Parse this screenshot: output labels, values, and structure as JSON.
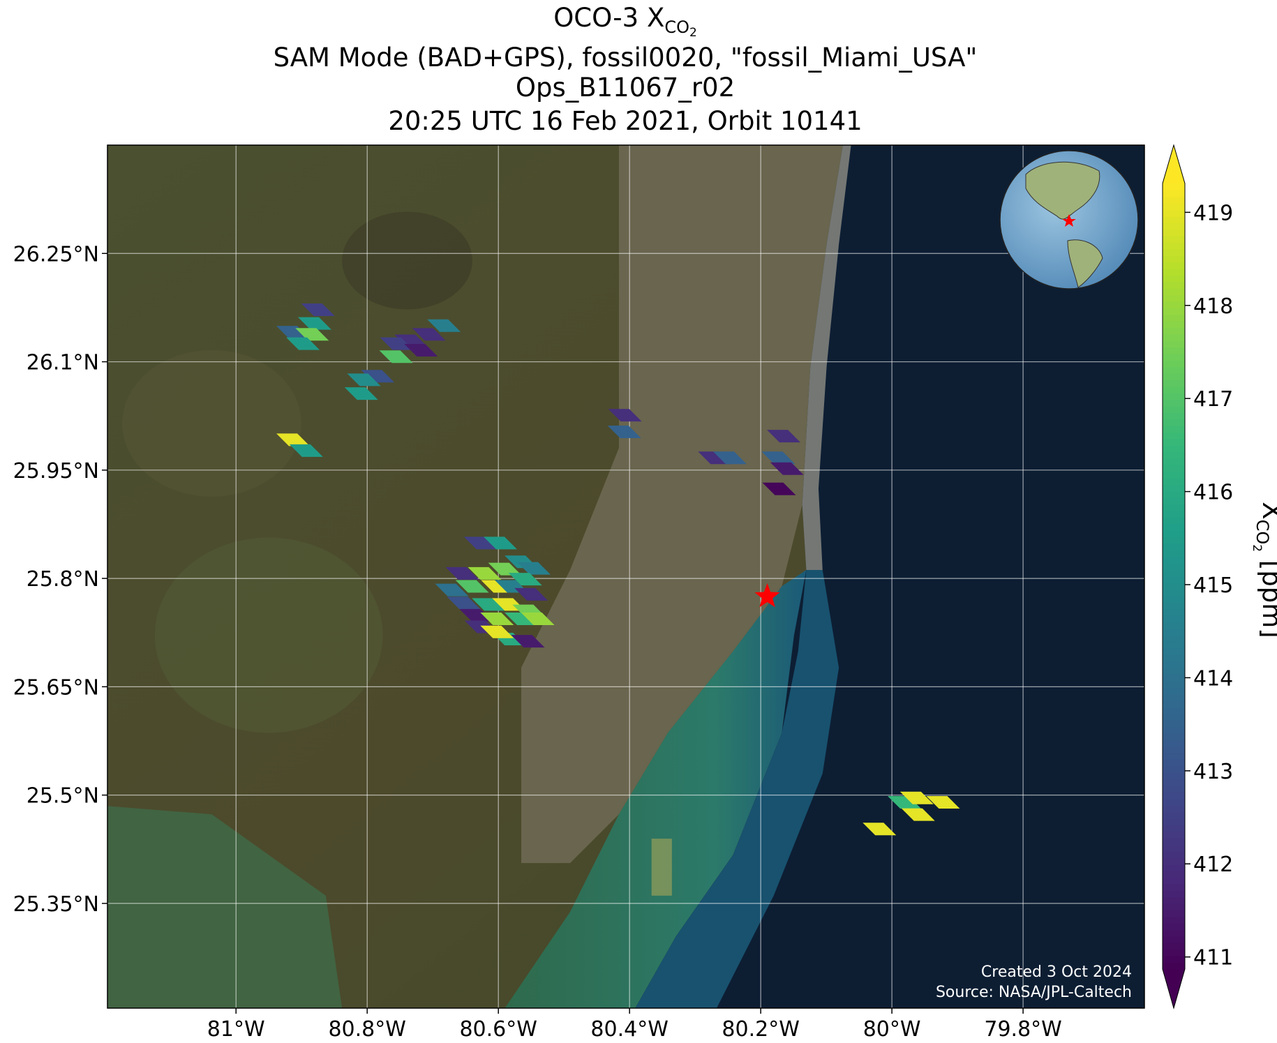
{
  "chart_data": {
    "type": "map",
    "title": {
      "base": "OCO-3 X",
      "sub": "CO",
      "subsub": "2"
    },
    "subtitle_lines": [
      "SAM Mode (BAD+GPS), fossil0020, \"fossil_Miami_USA\"",
      "Ops_B11067_r02",
      "20:25 UTC 16 Feb 2021, Orbit 10141"
    ],
    "xlim": [
      -81.196,
      -79.615
    ],
    "ylim": [
      25.205,
      26.4
    ],
    "xticks": [
      {
        "value": -81,
        "label": "81°W"
      },
      {
        "value": -80.8,
        "label": "80.8°W"
      },
      {
        "value": -80.6,
        "label": "80.6°W"
      },
      {
        "value": -80.4,
        "label": "80.4°W"
      },
      {
        "value": -80.2,
        "label": "80.2°W"
      },
      {
        "value": -80,
        "label": "80°W"
      },
      {
        "value": -79.8,
        "label": "79.8°W"
      }
    ],
    "yticks": [
      {
        "value": 26.25,
        "label": "26.25°N"
      },
      {
        "value": 26.1,
        "label": "26.1°N"
      },
      {
        "value": 25.95,
        "label": "25.95°N"
      },
      {
        "value": 25.8,
        "label": "25.8°N"
      },
      {
        "value": 25.65,
        "label": "25.65°N"
      },
      {
        "value": 25.5,
        "label": "25.5°N"
      },
      {
        "value": 25.35,
        "label": "25.35°N"
      }
    ],
    "grid": true,
    "colorbar": {
      "label": {
        "base": "X",
        "sub": "CO",
        "subsub": "2",
        "unit": " [ppm]"
      },
      "clim": [
        410.87,
        419.31
      ],
      "ticks": [
        411,
        412,
        413,
        414,
        415,
        416,
        417,
        418,
        419
      ],
      "colormap": [
        "#440154",
        "#482878",
        "#3e4989",
        "#31688e",
        "#26828e",
        "#1f9e89",
        "#35b779",
        "#6ece58",
        "#b5de2b",
        "#fde725"
      ]
    },
    "target": {
      "lon": -80.19,
      "lat": 25.775,
      "color": "#ff0000"
    },
    "soundings": {
      "lon": [
        -80.875,
        -80.913,
        -80.88,
        -80.884,
        -80.898,
        -80.683,
        -80.706,
        -80.733,
        -80.755,
        -80.718,
        -80.756,
        -80.784,
        -80.805,
        -80.809,
        -80.913,
        -80.893,
        -80.407,
        -80.408,
        -80.27,
        -80.247,
        -80.165,
        -80.173,
        -80.16,
        -80.172,
        -80.627,
        -80.597,
        -80.565,
        -80.546,
        -80.655,
        -80.621,
        -80.59,
        -80.559,
        -80.671,
        -80.64,
        -80.601,
        -80.58,
        -80.55,
        -80.653,
        -80.615,
        -80.584,
        -80.553,
        -80.634,
        -80.602,
        -80.565,
        -80.54,
        -80.626,
        -80.584,
        -80.555,
        -80.602,
        -80.019,
        -79.981,
        -79.962,
        -79.96,
        -79.922
      ],
      "lat": [
        26.172,
        26.141,
        26.153,
        26.138,
        26.125,
        26.15,
        26.138,
        26.129,
        26.125,
        26.116,
        26.107,
        26.08,
        26.075,
        26.056,
        25.992,
        25.977,
        26.026,
        26.003,
        25.967,
        25.967,
        25.997,
        25.967,
        25.952,
        25.924,
        25.849,
        25.849,
        25.823,
        25.814,
        25.807,
        25.807,
        25.813,
        25.799,
        25.784,
        25.789,
        25.789,
        25.789,
        25.778,
        25.766,
        25.764,
        25.764,
        25.755,
        25.749,
        25.744,
        25.744,
        25.744,
        25.733,
        25.716,
        25.713,
        25.726,
        25.453,
        25.49,
        25.496,
        25.473,
        25.49
      ],
      "xco2": [
        412.5,
        413.5,
        415.5,
        417.5,
        415.5,
        414.5,
        412,
        412,
        412.5,
        411.5,
        417,
        413,
        415,
        415.5,
        419,
        415.5,
        412,
        413.5,
        412,
        413.5,
        412,
        413.5,
        411.5,
        411,
        412.5,
        415.5,
        415,
        414.5,
        412,
        418,
        417.5,
        416,
        414,
        417,
        419,
        414.5,
        412,
        413,
        416,
        419,
        417.5,
        411.5,
        418,
        416.5,
        418,
        412,
        416,
        411.5,
        419,
        419,
        416.5,
        419,
        419,
        419
      ]
    },
    "annotations": [
      "Created 3 Oct 2024",
      "Source: NASA/JPL-Caltech"
    ]
  }
}
